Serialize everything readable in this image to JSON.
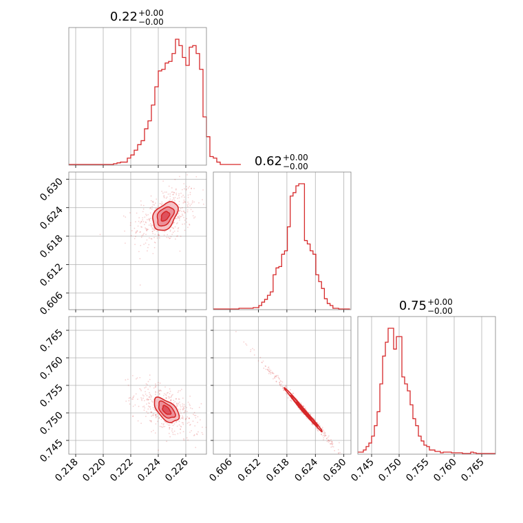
{
  "chart_data": {
    "type": "corner",
    "color": "#d62728",
    "parameters": [
      {
        "title_value": "0.22",
        "title_plus": "+0.00",
        "title_minus": "−0.00",
        "range": [
          0.2175,
          0.2275
        ],
        "ticks": [
          0.218,
          0.22,
          0.222,
          0.224,
          0.226
        ],
        "tick_labels": [
          "0.218",
          "0.220",
          "0.222",
          "0.224",
          "0.226"
        ],
        "hist_start": 0.2175,
        "hist_step": 0.00025,
        "hist": [
          0,
          0,
          0,
          0,
          0,
          0,
          0,
          0,
          0,
          0,
          0,
          0,
          0,
          1,
          2,
          3,
          3,
          8,
          12,
          18,
          25,
          30,
          45,
          55,
          75,
          98,
          118,
          120,
          128,
          130,
          140,
          158,
          150,
          135,
          125,
          148,
          150,
          140,
          120,
          60,
          35,
          10,
          8,
          3,
          0,
          0,
          0,
          0,
          0,
          0
        ]
      },
      {
        "title_value": "0.62",
        "title_plus": "+0.00",
        "title_minus": "−0.00",
        "range": [
          0.6025,
          0.6315
        ],
        "ticks": [
          0.606,
          0.612,
          0.618,
          0.624,
          0.63
        ],
        "tick_labels": [
          "0.606",
          "0.612",
          "0.618",
          "0.624",
          "0.630"
        ],
        "hist_start": 0.6025,
        "hist_step": 0.0006,
        "hist": [
          0,
          0,
          0,
          0,
          0,
          0,
          0,
          0,
          0,
          1,
          1,
          1,
          1,
          1,
          2,
          2,
          5,
          10,
          14,
          20,
          25,
          50,
          60,
          62,
          80,
          85,
          120,
          165,
          170,
          180,
          183,
          183,
          100,
          95,
          85,
          80,
          50,
          40,
          30,
          15,
          8,
          5,
          1,
          1,
          0,
          0,
          0,
          0
        ]
      },
      {
        "title_value": "0.75",
        "title_plus": "+0.00",
        "title_minus": "−0.00",
        "range": [
          0.7425,
          0.7675
        ],
        "ticks": [
          0.745,
          0.75,
          0.755,
          0.76,
          0.765
        ],
        "tick_labels": [
          "0.745",
          "0.750",
          "0.755",
          "0.760",
          "0.765"
        ],
        "hist_start": 0.7425,
        "hist_step": 0.0005,
        "hist": [
          2,
          2,
          5,
          10,
          15,
          25,
          40,
          60,
          100,
          140,
          160,
          180,
          180,
          150,
          168,
          168,
          110,
          100,
          90,
          70,
          50,
          40,
          25,
          18,
          12,
          10,
          5,
          5,
          3,
          3,
          1,
          2,
          2,
          2,
          1,
          1,
          1,
          1,
          0,
          0,
          0,
          2,
          1,
          0,
          0,
          0,
          0,
          0,
          0,
          0
        ]
      }
    ],
    "pairs": [
      {
        "row": 1,
        "col": 0,
        "center": [
          0.2245,
          0.6222
        ],
        "sigma": [
          0.0009,
          0.0025
        ],
        "rho": 0.4,
        "n": 420,
        "levels": [
          {
            "s": [
              0.0009,
              0.003
            ],
            "fill": "#f4b8bd"
          },
          {
            "s": [
              0.0006,
              0.002
            ],
            "fill": "#ea8790"
          },
          {
            "s": [
              0.0003,
              0.001
            ],
            "fill": "#dc4752"
          }
        ]
      },
      {
        "row": 2,
        "col": 0,
        "center": [
          0.2246,
          0.7505
        ],
        "sigma": [
          0.0009,
          0.0019
        ],
        "rho": -0.55,
        "n": 420,
        "levels": [
          {
            "s": [
              0.0009,
              0.0022
            ],
            "fill": "#f4b8bd"
          },
          {
            "s": [
              0.0006,
              0.0015
            ],
            "fill": "#ea8790"
          },
          {
            "s": [
              0.0003,
              0.0008
            ],
            "fill": "#dc4752"
          }
        ]
      },
      {
        "row": 2,
        "col": 1,
        "center": [
          0.6215,
          0.7505
        ],
        "sigma": [
          0.0035,
          0.0035
        ],
        "rho": -0.995,
        "n": 320,
        "levels": [
          {
            "s": [
              0.004,
              0.004
            ],
            "fill": "#f4b8bd"
          },
          {
            "s": [
              0.0028,
              0.0028
            ],
            "fill": "#ea8790"
          },
          {
            "s": [
              0.0015,
              0.0015
            ],
            "fill": "#dc4752"
          }
        ]
      }
    ],
    "grid": true
  }
}
